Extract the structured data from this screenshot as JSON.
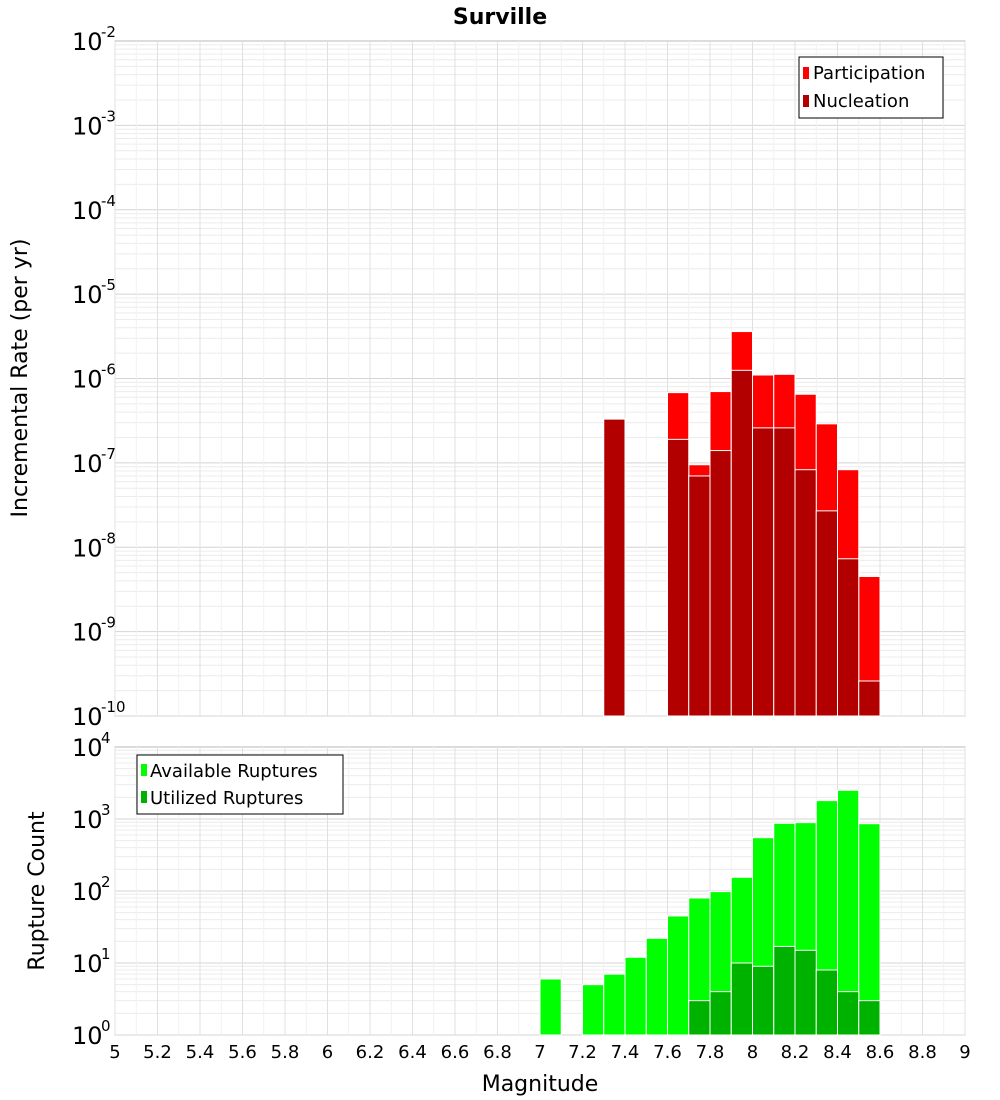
{
  "chart_data": [
    {
      "type": "bar",
      "title": "Surville",
      "ylabel": "Incremental Rate (per yr)",
      "xlabel": "",
      "y_scale": "log",
      "ylim_exponents": [
        -10,
        -2
      ],
      "xlim": [
        5,
        9
      ],
      "bar_width": 0.1,
      "grid": true,
      "legend_position": "top-right",
      "colors": {
        "Participation": "#ff0000",
        "Nucleation": "#b20000"
      },
      "x": [
        7.35,
        7.65,
        7.75,
        7.85,
        7.95,
        8.05,
        8.15,
        8.25,
        8.35,
        8.45,
        8.55
      ],
      "series": [
        {
          "name": "Participation",
          "values": [
            3.3e-07,
            6.8e-07,
            9.5e-08,
            7e-07,
            3.6e-06,
            1.1e-06,
            1.12e-06,
            6.5e-07,
            2.9e-07,
            8.3e-08,
            4.5e-09
          ]
        },
        {
          "name": "Nucleation",
          "values": [
            3.3e-07,
            1.9e-07,
            7e-08,
            1.4e-07,
            1.25e-06,
            2.6e-07,
            2.6e-07,
            8.3e-08,
            2.7e-08,
            7.3e-09,
            2.6e-10
          ]
        }
      ]
    },
    {
      "type": "bar",
      "title": "",
      "ylabel": "Rupture Count",
      "xlabel": "Magnitude",
      "y_scale": "log",
      "ylim_exponents": [
        0,
        4
      ],
      "xlim": [
        5,
        9
      ],
      "bar_width": 0.1,
      "grid": true,
      "legend_position": "top-left",
      "x_ticks": [
        "5",
        "5.2",
        "5.4",
        "5.6",
        "5.8",
        "6",
        "6.2",
        "6.4",
        "6.6",
        "6.8",
        "7",
        "7.2",
        "7.4",
        "7.6",
        "7.8",
        "8",
        "8.2",
        "8.4",
        "8.6",
        "8.8",
        "9"
      ],
      "colors": {
        "Available Ruptures": "#00ff00",
        "Utilized Ruptures": "#00b200"
      },
      "x": [
        7.05,
        7.25,
        7.35,
        7.45,
        7.55,
        7.65,
        7.75,
        7.85,
        7.95,
        8.05,
        8.15,
        8.25,
        8.35,
        8.45,
        8.55
      ],
      "series": [
        {
          "name": "Available Ruptures",
          "values": [
            6,
            5,
            7,
            12,
            22,
            45,
            80,
            98,
            155,
            550,
            870,
            890,
            1800,
            2500,
            860
          ]
        },
        {
          "name": "Utilized Ruptures",
          "values": [
            0,
            0,
            1,
            0,
            1,
            1,
            3,
            4,
            10,
            9,
            17,
            15,
            8,
            4,
            3
          ]
        }
      ]
    }
  ]
}
